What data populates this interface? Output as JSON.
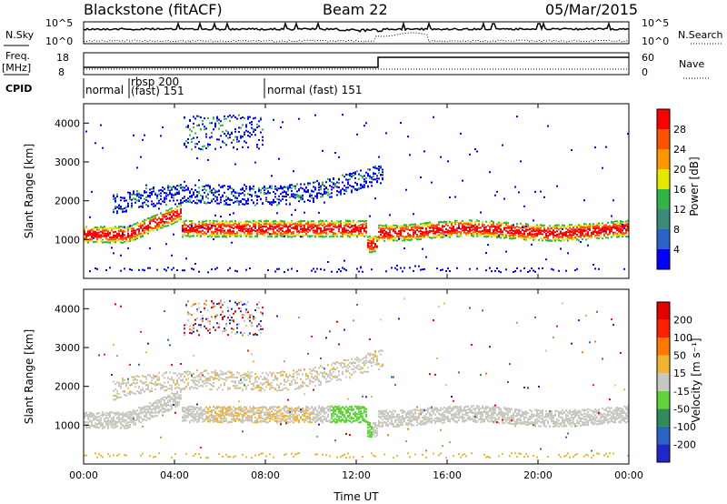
{
  "header": {
    "station": "Blackstone (fitACF)",
    "beam": "Beam 22",
    "date": "05/Mar/2015"
  },
  "panels": {
    "noise": {
      "left_label": "N.Sky",
      "right_label": "N.Search",
      "left_ticks": [
        "10^5",
        "10^0"
      ],
      "right_ticks": [
        "10^5",
        "10^0"
      ]
    },
    "freq": {
      "left_label": "Freq.",
      "left_unit": "[MHz]",
      "right_label": "Nave",
      "left_ticks": [
        "18",
        "8"
      ],
      "right_ticks": [
        "60",
        "0"
      ]
    },
    "cpid": {
      "label": "CPID",
      "segments": [
        "normal",
        "rbsp 200",
        "(fast) 151",
        "normal (fast) 151"
      ]
    }
  },
  "chart_data": [
    {
      "type": "heatmap",
      "name": "Power",
      "ylabel": "Slant Range [km]",
      "yticks": [
        1000,
        2000,
        3000,
        4000
      ],
      "colorbar_label": "Power [dB]",
      "colorbar_ticks": [
        "28",
        "24",
        "20",
        "16",
        "12",
        "8",
        "4"
      ],
      "colorbar_colors": [
        "#0000ff",
        "#2a64c8",
        "#3c8a78",
        "#32b446",
        "#e6e600",
        "#ff9600",
        "#ff5000",
        "#ff0000"
      ]
    },
    {
      "type": "heatmap",
      "name": "Velocity",
      "ylabel": "Slant Range [km]",
      "yticks": [
        1000,
        2000,
        3000,
        4000
      ],
      "colorbar_label": "Velocity [m s⁻¹]",
      "colorbar_ticks": [
        "200",
        "100",
        "50",
        "15",
        "-15",
        "-50",
        "-100",
        "-200"
      ],
      "colorbar_colors": [
        "#1e28c8",
        "#2a64c8",
        "#2f8c5a",
        "#5fd23c",
        "#c8c8c0",
        "#f0b432",
        "#ff7800",
        "#ff2000",
        "#e60000"
      ]
    }
  ],
  "xaxis": {
    "ticks": [
      "00:00",
      "04:00",
      "08:00",
      "12:00",
      "16:00",
      "20:00",
      "00:00"
    ],
    "label": "Time UT"
  }
}
